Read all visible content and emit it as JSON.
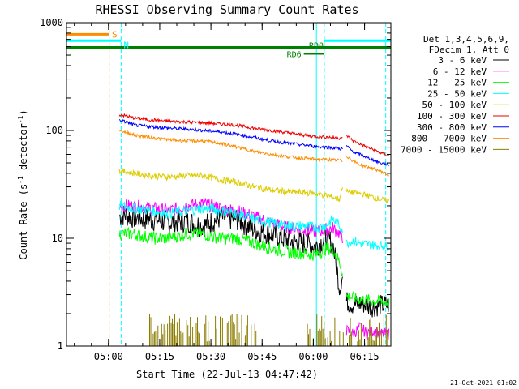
{
  "chart_data": {
    "type": "line",
    "title": "RHESSI Observing Summary Count Rates",
    "xlabel": "Start Time (22-Jul-13 04:47:42)",
    "ylabel_main": "Count Rate (s",
    "ylabel_sup1": "-1",
    "ylabel_mid": " detector",
    "ylabel_sup2": "-1",
    "ylabel_end": ")",
    "x_unit": "minutes after 04:47:42",
    "xlim": [
      0,
      95
    ],
    "ylim": [
      1,
      1000
    ],
    "yscale": "log",
    "x_ticks": [
      {
        "value": 12.3,
        "label": "05:00"
      },
      {
        "value": 27.3,
        "label": "05:15"
      },
      {
        "value": 42.3,
        "label": "05:30"
      },
      {
        "value": 57.3,
        "label": "05:45"
      },
      {
        "value": 72.3,
        "label": "06:00"
      },
      {
        "value": 87.3,
        "label": "06:15"
      }
    ],
    "y_ticks": [
      {
        "value": 1,
        "label": "1"
      },
      {
        "value": 10,
        "label": "10"
      },
      {
        "value": 100,
        "label": "100"
      },
      {
        "value": 1000,
        "label": "1000"
      }
    ],
    "legend_header": [
      "Det 1,3,4,5,6,9,",
      "FDecim 1, Att 0"
    ],
    "legend_placement": "right",
    "series": [
      {
        "name": "3 - 6 keV",
        "color": "#000000",
        "x": [
          15.5,
          17,
          20,
          25,
          30,
          35,
          40,
          45,
          50,
          55,
          60,
          65,
          70,
          73,
          76,
          78,
          80,
          81
        ],
        "y": [
          16,
          16.5,
          15.5,
          15,
          14,
          14.5,
          13,
          15.5,
          15,
          12,
          11,
          9.5,
          9,
          8.5,
          10,
          9,
          3.5,
          4.5
        ]
      },
      {
        "name": "6 - 12 keV",
        "color": "#ff00ff",
        "x": [
          15.5,
          20,
          25,
          30,
          35,
          40,
          45,
          50,
          55,
          60,
          65,
          70,
          73,
          76,
          78,
          80,
          81
        ],
        "y": [
          20,
          20,
          19,
          18,
          20,
          21,
          19,
          18,
          16,
          14,
          12.5,
          12,
          11.5,
          12,
          12.5,
          11,
          10
        ]
      },
      {
        "name": "12 - 25 keV",
        "color": "#00ff00",
        "x": [
          15.5,
          20,
          25,
          30,
          35,
          40,
          45,
          50,
          55,
          60,
          65,
          70,
          73,
          76,
          78,
          80,
          81
        ],
        "y": [
          11,
          11,
          10,
          10,
          11,
          11,
          10,
          10,
          9,
          8,
          7.5,
          7.2,
          7,
          8,
          8,
          6,
          4.5
        ]
      },
      {
        "name": "25 - 50 keV",
        "color": "#00ffff",
        "x": [
          15.5,
          20,
          25,
          30,
          35,
          40,
          45,
          50,
          55,
          60,
          65,
          70,
          73,
          76,
          78,
          80,
          81
        ],
        "y": [
          20,
          19,
          18,
          17,
          18,
          19,
          18,
          17,
          15,
          14,
          13,
          13,
          12.5,
          13,
          15,
          13,
          12
        ]
      },
      {
        "name": "50 - 100 keV",
        "color": "#ddcc00",
        "x": [
          15.5,
          18,
          20,
          25,
          30,
          35,
          40,
          45,
          50,
          55,
          60,
          65,
          70,
          73,
          76,
          78,
          80,
          81
        ],
        "y": [
          42,
          41,
          40,
          38,
          37,
          38,
          38,
          35,
          33,
          30,
          28,
          27,
          26.5,
          26,
          25,
          24,
          23,
          33
        ]
      },
      {
        "name": "100 - 300 keV",
        "color": "#ee0000",
        "x": [
          15.5,
          18,
          20,
          25,
          30,
          35,
          40,
          45,
          50,
          55,
          60,
          65,
          70,
          73,
          76,
          78,
          80,
          81
        ],
        "y": [
          140,
          135,
          130,
          125,
          122,
          120,
          118,
          115,
          112,
          105,
          100,
          95,
          90,
          88,
          87,
          86,
          85,
          84
        ]
      },
      {
        "name": "300 - 800 keV",
        "color": "#0000ff",
        "x": [
          15.5,
          18,
          20,
          25,
          30,
          35,
          40,
          45,
          50,
          55,
          60,
          65,
          70,
          73,
          76,
          78,
          80,
          81
        ],
        "y": [
          125,
          118,
          112,
          108,
          105,
          103,
          100,
          97,
          92,
          86,
          80,
          76,
          73,
          71,
          70,
          69,
          68,
          67
        ]
      },
      {
        "name": "800 - 7000 keV",
        "color": "#ff8c00",
        "x": [
          15.5,
          18,
          20,
          25,
          30,
          35,
          40,
          45,
          50,
          55,
          60,
          65,
          70,
          73,
          76,
          78,
          80,
          81
        ],
        "y": [
          100,
          95,
          90,
          86,
          82,
          80,
          80,
          76,
          70,
          64,
          60,
          57,
          55,
          54,
          54,
          53,
          53,
          52
        ]
      },
      {
        "name": "7000 - 15000 keV",
        "color": "#8b7d00",
        "x": [
          24,
          30,
          36,
          42,
          48,
          54
        ],
        "y": [
          1.2,
          1.4,
          1.3,
          1.5,
          1.2,
          1.3
        ]
      }
    ],
    "late_series": {
      "x": [
        82,
        84,
        86,
        88,
        90,
        92,
        94.5
      ],
      "black": [
        2.6,
        2.4,
        2.5,
        2.4,
        2.3,
        2.4,
        2.4
      ],
      "magenta": [
        1.4,
        1.3,
        1.5,
        1.3,
        1.4,
        1.3,
        1.3
      ],
      "green": [
        2.9,
        2.8,
        2.7,
        2.7,
        2.6,
        2.6,
        2.5
      ],
      "cyan": [
        9,
        9.5,
        9,
        8.8,
        8.7,
        8.6,
        8.5
      ],
      "yellow": [
        27,
        26.5,
        26,
        25,
        24,
        23,
        22
      ],
      "red": [
        90,
        80,
        75,
        70,
        66,
        62,
        58
      ],
      "blue": [
        72,
        63,
        60,
        56,
        53,
        50,
        48
      ],
      "orange": [
        58,
        52,
        48,
        46,
        44,
        42,
        38
      ]
    },
    "flag_bars": [
      {
        "label": "S",
        "color": "#ff8c00",
        "x_start": 0,
        "x_end": 12.5,
        "y": 780
      },
      {
        "label": "N",
        "color": "#00ffff",
        "x_start": 0,
        "x_end": 16,
        "y": 680
      },
      {
        "label": "RD0",
        "color": "#008000",
        "x_start": 0,
        "x_end": 95,
        "y": 590
      },
      {
        "label": "",
        "color": "#00ffff",
        "x_start": 75.5,
        "x_end": 95,
        "y": 680
      }
    ],
    "flag_annotation": {
      "label": "RD6",
      "color": "#008000"
    },
    "vlines": [
      {
        "x": 12.5,
        "color": "#ff8c00",
        "style": "dashed"
      },
      {
        "x": 16,
        "color": "#00ffff",
        "style": "dashed"
      },
      {
        "x": 73.2,
        "color": "#00ffff",
        "style": "solid"
      },
      {
        "x": 75.5,
        "color": "#00ffff",
        "style": "dashed"
      },
      {
        "x": 93.5,
        "color": "#00ffff",
        "style": "dashed"
      }
    ],
    "grid": false
  },
  "timestamp": "21-Oct-2021 01:02"
}
